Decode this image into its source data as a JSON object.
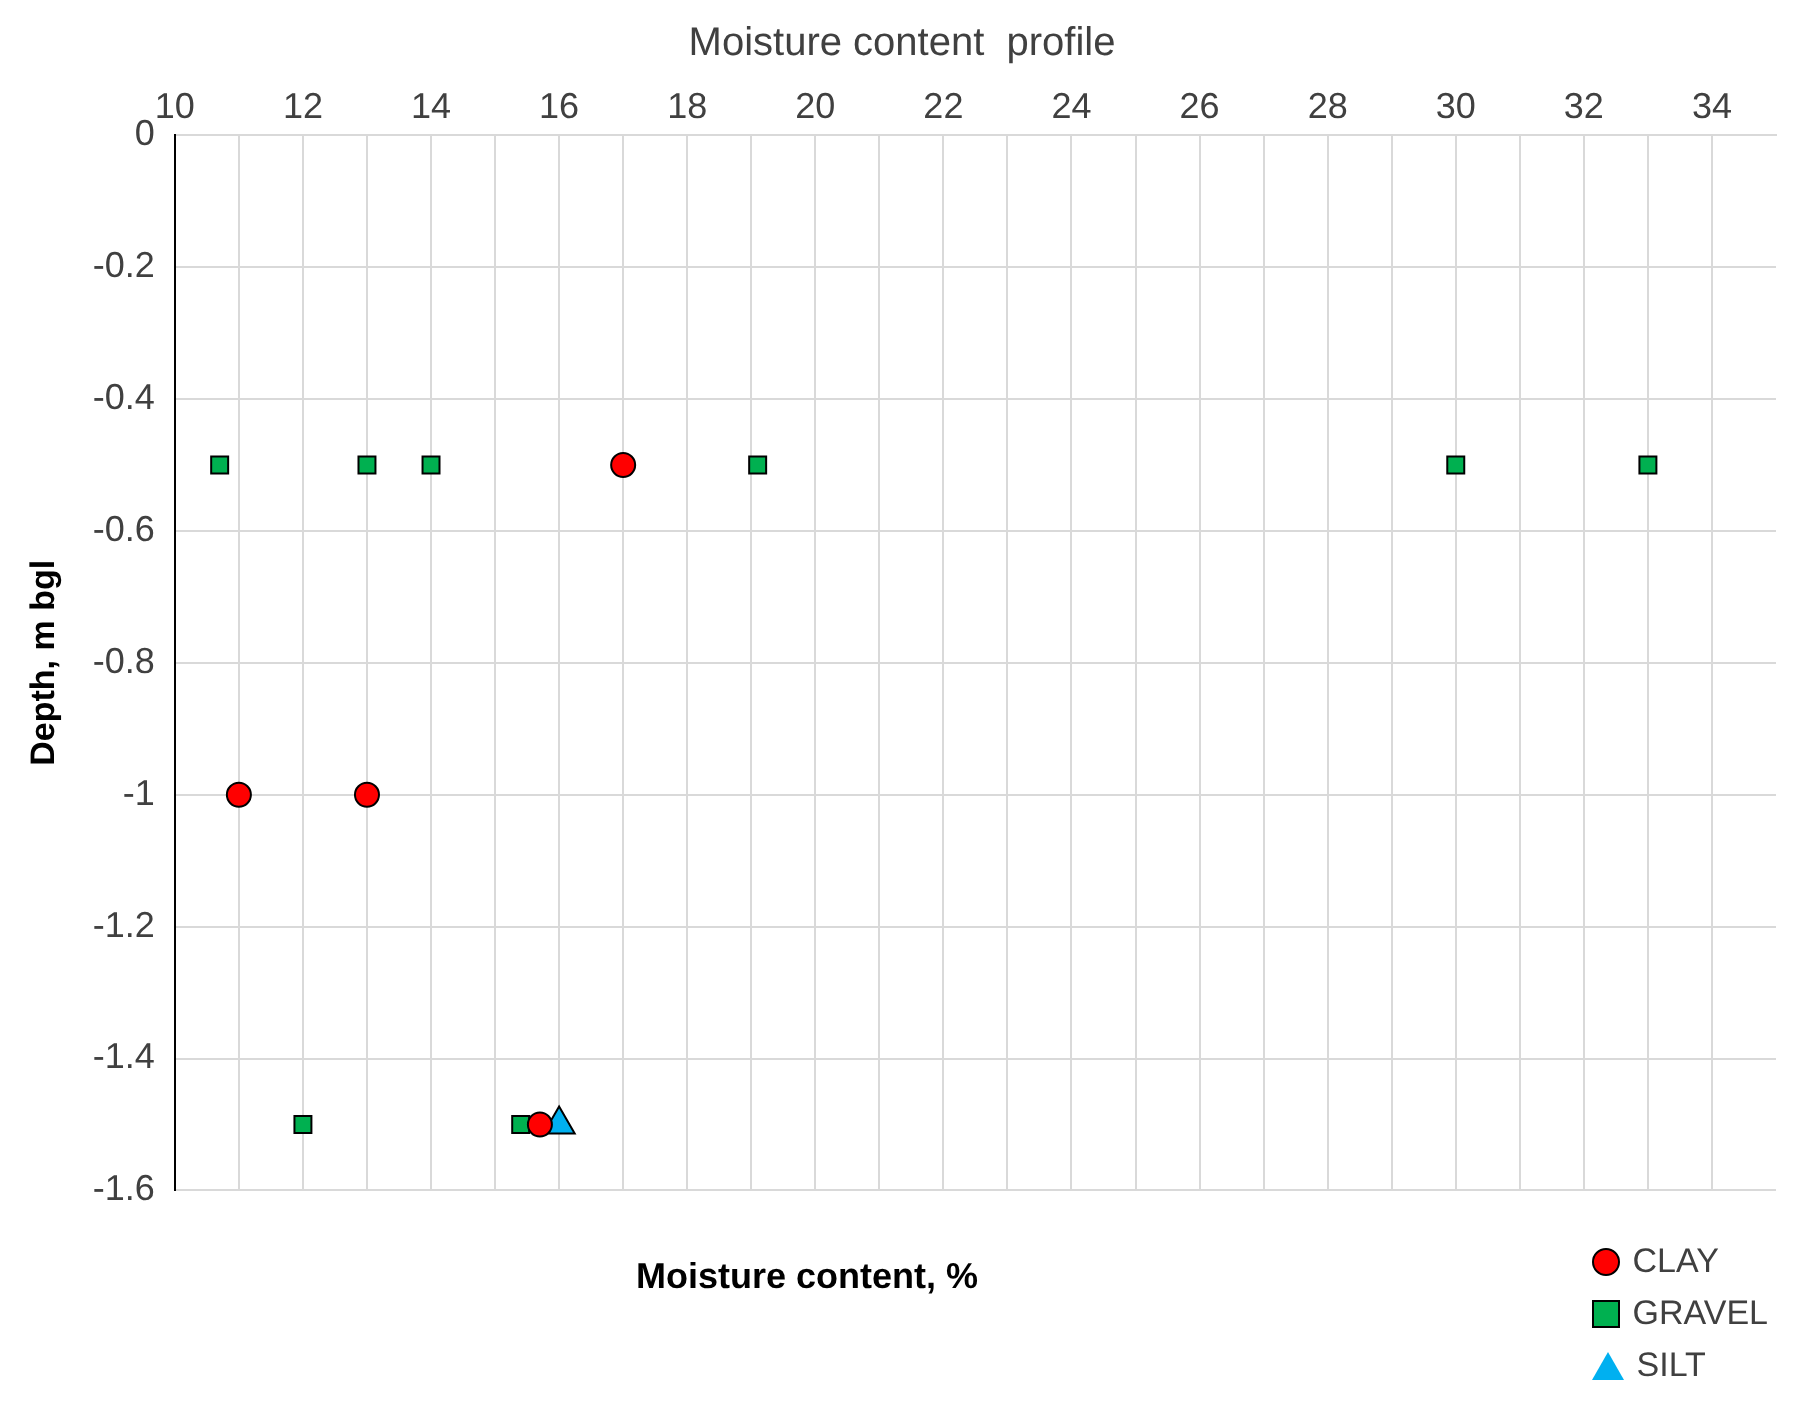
{
  "chart_data": {
    "type": "scatter",
    "title": "Moisture content  profile",
    "xlabel": "Moisture content, %",
    "ylabel": "Depth, m bgl",
    "xlim": [
      10,
      35
    ],
    "xticks": [
      10,
      {
        "value": 11,
        "label": null
      },
      12,
      {
        "value": 13,
        "label": null
      },
      14,
      {
        "value": 15,
        "label": null
      },
      16,
      {
        "value": 17,
        "label": null
      },
      18,
      {
        "value": 19,
        "label": null
      },
      20,
      {
        "value": 21,
        "label": null
      },
      22,
      {
        "value": 23,
        "label": null
      },
      24,
      {
        "value": 25,
        "label": null
      },
      26,
      {
        "value": 27,
        "label": null
      },
      28,
      {
        "value": 29,
        "label": null
      },
      30,
      {
        "value": 31,
        "label": null
      },
      32,
      {
        "value": 33,
        "label": null
      },
      34
    ],
    "ylim": [
      -1.6,
      0
    ],
    "yticks": [
      -1.6,
      -1.4,
      -1.2,
      -1,
      -0.8,
      -0.6,
      -0.4,
      -0.2,
      0
    ],
    "grid": true,
    "legend": "bottom right",
    "series": [
      {
        "name": "CLAY",
        "color": "#ff0000",
        "marker": "circle",
        "x": [
          17,
          11,
          13,
          15.7
        ],
        "values": [
          -0.5,
          -1,
          -1,
          -1.5
        ]
      },
      {
        "name": "GRAVEL",
        "color": "#00b050",
        "marker": "square",
        "x": [
          10.7,
          13,
          14,
          19.1,
          30,
          33,
          12,
          15.4
        ],
        "values": [
          -0.5,
          -0.5,
          -0.5,
          -0.5,
          -0.5,
          -0.5,
          -1.5,
          -1.5
        ]
      },
      {
        "name": "SILT",
        "color": "#00b0f0",
        "marker": "triangle",
        "x": [
          16
        ],
        "values": [
          -1.5
        ]
      }
    ]
  }
}
